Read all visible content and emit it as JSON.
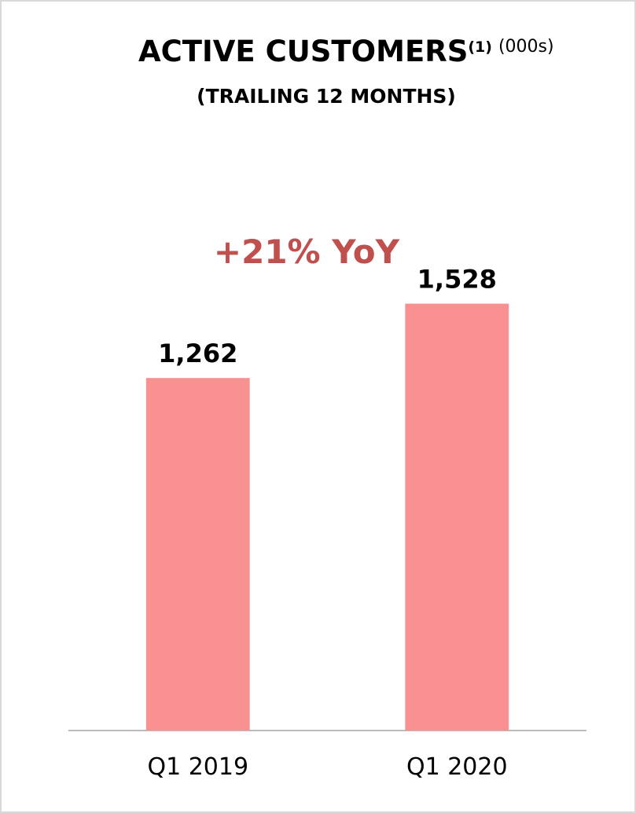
{
  "chart_data": {
    "type": "bar",
    "title": "ACTIVE CUSTOMERS",
    "title_note": "(1)",
    "units": "(000s)",
    "subtitle": "(TRAILING 12 MONTHS)",
    "annotation": "+21% YoY",
    "annotation_color": "#c0504d",
    "categories": [
      "Q1 2019",
      "Q1 2020"
    ],
    "values": [
      1262,
      1528
    ],
    "value_labels": [
      "1,262",
      "1,528"
    ],
    "color": "#f99191",
    "ylim": [
      0,
      1600
    ],
    "grid": false
  }
}
